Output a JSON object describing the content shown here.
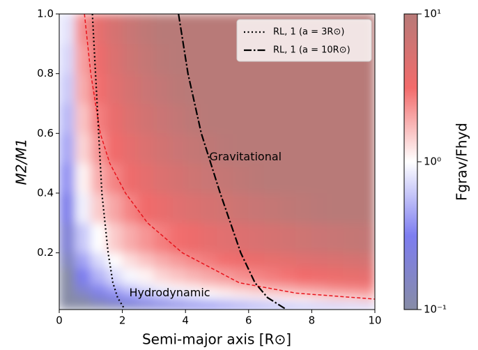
{
  "chart_data": {
    "type": "heatmap",
    "xlabel": "Semi-major axis [R⊙]",
    "ylabel": "M2/M1",
    "colorbar_label": "Fgrav/Fhyd",
    "xlim": [
      0,
      10
    ],
    "ylim": [
      0.01,
      1.0
    ],
    "xticks": [
      0,
      2,
      4,
      6,
      8,
      10
    ],
    "yticks": [
      0.2,
      0.4,
      0.6,
      0.8,
      {
        "value": 1.0,
        "label": "1.0"
      }
    ],
    "clim": [
      0.1,
      10
    ],
    "clog": true,
    "cticks": [
      {
        "value": 10,
        "label": "10¹"
      },
      {
        "value": 1,
        "label": "10⁰"
      },
      {
        "value": 0.1,
        "label": "10⁻¹"
      }
    ],
    "colormap": [
      "#878ca6",
      "#7d7df0",
      "#ffffff",
      "#f26b6b",
      "#b87a78"
    ],
    "x_edges": [
      0,
      0.5,
      1,
      1.5,
      2,
      2.5,
      3,
      3.5,
      4,
      4.5,
      5,
      5.5,
      6,
      6.5,
      7,
      7.5,
      8,
      8.5,
      9,
      9.5,
      10
    ],
    "y_edges": [
      0.01,
      0.03,
      0.05,
      0.075,
      0.1,
      0.15,
      0.2,
      0.3,
      0.4,
      0.5,
      0.6,
      0.7,
      0.8,
      0.9,
      1.0
    ],
    "z": [
      [
        0.017,
        0.05,
        0.083,
        0.12,
        0.15,
        0.18,
        0.22,
        0.25,
        0.28,
        0.32,
        0.35,
        0.38,
        0.42,
        0.45,
        0.48,
        0.52,
        0.55,
        0.58,
        0.62,
        0.65
      ],
      [
        0.033,
        0.1,
        0.17,
        0.23,
        0.3,
        0.37,
        0.43,
        0.5,
        0.57,
        0.63,
        0.7,
        0.77,
        0.83,
        0.9,
        0.97,
        1.0,
        1.1,
        1.2,
        1.2,
        1.3
      ],
      [
        0.052,
        0.16,
        0.26,
        0.36,
        0.47,
        0.57,
        0.68,
        0.78,
        0.88,
        0.99,
        1.1,
        1.2,
        1.3,
        1.4,
        1.5,
        1.6,
        1.7,
        1.8,
        1.9,
        2.0
      ],
      [
        0.073,
        0.22,
        0.36,
        0.51,
        0.66,
        0.8,
        0.95,
        1.1,
        1.2,
        1.4,
        1.5,
        1.7,
        1.8,
        2.0,
        2.1,
        2.3,
        2.4,
        2.6,
        2.7,
        2.8
      ],
      [
        0.1,
        0.31,
        0.52,
        0.73,
        0.94,
        1.1,
        1.4,
        1.6,
        1.8,
        2.0,
        2.2,
        2.4,
        2.6,
        2.8,
        3.0,
        3.2,
        3.4,
        3.6,
        3.9,
        4.1
      ],
      [
        0.15,
        0.44,
        0.73,
        1.0,
        1.3,
        1.6,
        1.9,
        2.2,
        2.5,
        2.8,
        3.1,
        3.4,
        3.6,
        3.9,
        4.2,
        4.5,
        4.8,
        5.1,
        5.4,
        5.7
      ],
      [
        0.21,
        0.62,
        1.0,
        1.5,
        1.9,
        2.3,
        2.7,
        3.1,
        3.5,
        4.0,
        4.4,
        4.8,
        5.2,
        5.6,
        6.0,
        6.5,
        6.9,
        7.3,
        7.7,
        8.1
      ],
      [
        0.29,
        0.88,
        1.5,
        2.0,
        2.6,
        3.2,
        3.8,
        4.4,
        5.0,
        5.5,
        6.1,
        6.7,
        7.3,
        7.9,
        8.5,
        9.0,
        9.6,
        10,
        11,
        11
      ],
      [
        0.38,
        1.1,
        1.9,
        2.6,
        3.4,
        4.1,
        4.9,
        5.6,
        6.4,
        7.1,
        7.9,
        8.6,
        9.4,
        10,
        11,
        12,
        12,
        13,
        14,
        15
      ],
      [
        0.46,
        1.4,
        2.3,
        3.2,
        4.1,
        5.0,
        6.0,
        6.9,
        7.8,
        8.7,
        9.6,
        11,
        11,
        12,
        13,
        14,
        15,
        16,
        17,
        18
      ],
      [
        0.54,
        1.6,
        2.7,
        3.8,
        4.9,
        6.0,
        7.0,
        8.1,
        9.2,
        10,
        11,
        12,
        14,
        15,
        16,
        17,
        18,
        19,
        20,
        21
      ],
      [
        0.63,
        1.9,
        3.1,
        4.4,
        5.6,
        6.9,
        8.1,
        9.4,
        11,
        12,
        13,
        14,
        16,
        17,
        18,
        19,
        21,
        22,
        23,
        24
      ],
      [
        0.71,
        2.1,
        3.5,
        5.0,
        6.4,
        7.8,
        9.2,
        11,
        12,
        13,
        15,
        16,
        18,
        19,
        21,
        22,
        23,
        25,
        26,
        28
      ],
      [
        0.79,
        2.4,
        4.0,
        5.5,
        7.1,
        8.7,
        10,
        12,
        13,
        15,
        17,
        18,
        20,
        21,
        23,
        25,
        26,
        28,
        29,
        31
      ]
    ],
    "series": [
      {
        "color": "#e8141c",
        "style": "dashed",
        "x": [
          0.8,
          1.0,
          1.3,
          1.6,
          2.1,
          2.8,
          3.9,
          5.7,
          7.5,
          10
        ],
        "y": [
          1.0,
          0.8,
          0.6,
          0.5,
          0.4,
          0.3,
          0.2,
          0.1,
          0.065,
          0.045
        ]
      },
      {
        "name": "RL, 1 (a = 3R⊙)",
        "color": "#000000",
        "style": "dotted",
        "x": [
          1.05,
          1.15,
          1.25,
          1.35,
          1.45,
          1.55,
          1.7,
          1.85,
          2.05
        ],
        "y": [
          1.0,
          0.8,
          0.6,
          0.4,
          0.3,
          0.2,
          0.1,
          0.05,
          0.015
        ]
      },
      {
        "name": "RL, 1 (a = 10R⊙)",
        "color": "#000000",
        "style": "dashdot",
        "x": [
          3.78,
          4.08,
          4.5,
          5.1,
          5.75,
          6.2,
          6.6,
          7.2
        ],
        "y": [
          1.0,
          0.8,
          0.6,
          0.4,
          0.2,
          0.1,
          0.05,
          0.01
        ]
      }
    ],
    "annotations": [
      {
        "text": "Gravitational",
        "x": 5.9,
        "y": 0.52
      },
      {
        "text": "Hydrodynamic",
        "x": 3.5,
        "y": 0.065
      }
    ],
    "legend": "upper right"
  }
}
